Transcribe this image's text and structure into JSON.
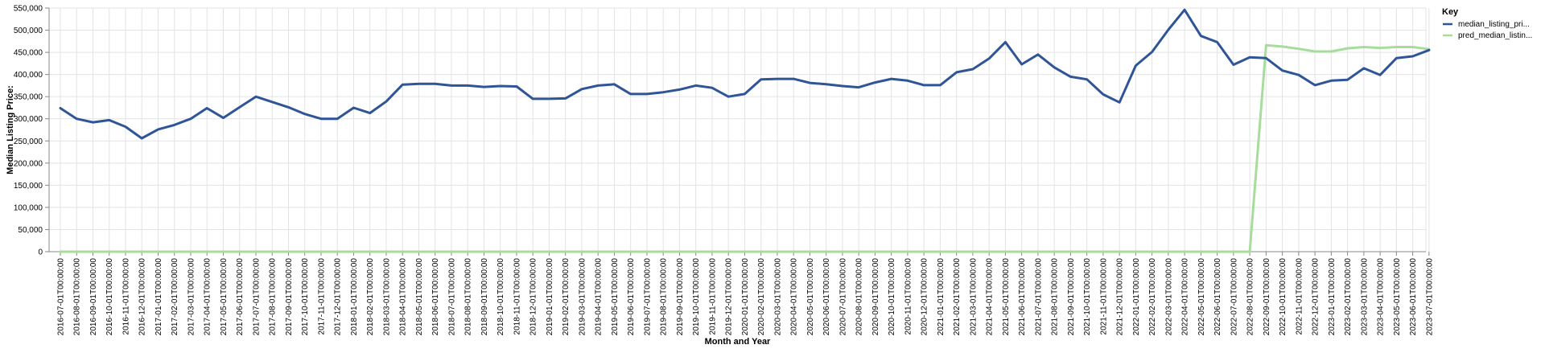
{
  "chart_data": {
    "type": "line",
    "xlabel": "Month and Year",
    "ylabel": "Median Listing Price:",
    "ylim": [
      0,
      550000
    ],
    "y_ticks": [
      "0",
      "50,000",
      "100,000",
      "150,000",
      "200,000",
      "250,000",
      "300,000",
      "350,000",
      "400,000",
      "450,000",
      "500,000",
      "550,000"
    ],
    "grid": true,
    "legend_position": "right",
    "legend_title": "Key",
    "x": [
      "2016-07-01T00:00:00",
      "2016-08-01T00:00:00",
      "2016-09-01T00:00:00",
      "2016-10-01T00:00:00",
      "2016-11-01T00:00:00",
      "2016-12-01T00:00:00",
      "2017-01-01T00:00:00",
      "2017-02-01T00:00:00",
      "2017-03-01T00:00:00",
      "2017-04-01T00:00:00",
      "2017-05-01T00:00:00",
      "2017-06-01T00:00:00",
      "2017-07-01T00:00:00",
      "2017-08-01T00:00:00",
      "2017-09-01T00:00:00",
      "2017-10-01T00:00:00",
      "2017-11-01T00:00:00",
      "2017-12-01T00:00:00",
      "2018-01-01T00:00:00",
      "2018-02-01T00:00:00",
      "2018-03-01T00:00:00",
      "2018-04-01T00:00:00",
      "2018-05-01T00:00:00",
      "2018-06-01T00:00:00",
      "2018-07-01T00:00:00",
      "2018-08-01T00:00:00",
      "2018-09-01T00:00:00",
      "2018-10-01T00:00:00",
      "2018-11-01T00:00:00",
      "2018-12-01T00:00:00",
      "2019-01-01T00:00:00",
      "2019-02-01T00:00:00",
      "2019-03-01T00:00:00",
      "2019-04-01T00:00:00",
      "2019-05-01T00:00:00",
      "2019-06-01T00:00:00",
      "2019-07-01T00:00:00",
      "2019-08-01T00:00:00",
      "2019-09-01T00:00:00",
      "2019-10-01T00:00:00",
      "2019-11-01T00:00:00",
      "2019-12-01T00:00:00",
      "2020-01-01T00:00:00",
      "2020-02-01T00:00:00",
      "2020-03-01T00:00:00",
      "2020-04-01T00:00:00",
      "2020-05-01T00:00:00",
      "2020-06-01T00:00:00",
      "2020-07-01T00:00:00",
      "2020-08-01T00:00:00",
      "2020-09-01T00:00:00",
      "2020-10-01T00:00:00",
      "2020-11-01T00:00:00",
      "2020-12-01T00:00:00",
      "2021-01-01T00:00:00",
      "2021-02-01T00:00:00",
      "2021-03-01T00:00:00",
      "2021-04-01T00:00:00",
      "2021-05-01T00:00:00",
      "2021-06-01T00:00:00",
      "2021-07-01T00:00:00",
      "2021-08-01T00:00:00",
      "2021-09-01T00:00:00",
      "2021-10-01T00:00:00",
      "2021-11-01T00:00:00",
      "2021-12-01T00:00:00",
      "2022-01-01T00:00:00",
      "2022-02-01T00:00:00",
      "2022-03-01T00:00:00",
      "2022-04-01T00:00:00",
      "2022-05-01T00:00:00",
      "2022-06-01T00:00:00",
      "2022-07-01T00:00:00",
      "2022-08-01T00:00:00",
      "2022-09-01T00:00:00",
      "2022-10-01T00:00:00",
      "2022-11-01T00:00:00",
      "2022-12-01T00:00:00",
      "2023-01-01T00:00:00",
      "2023-02-01T00:00:00",
      "2023-03-01T00:00:00",
      "2023-04-01T00:00:00",
      "2023-05-01T00:00:00",
      "2023-06-01T00:00:00",
      "2023-07-01T00:00:00"
    ],
    "series": [
      {
        "name": "median_listing_pri...",
        "color": "#2f5597",
        "values": [
          324000,
          300000,
          292000,
          297000,
          282000,
          256000,
          276000,
          286000,
          300000,
          324000,
          302000,
          326000,
          350000,
          338000,
          326000,
          311000,
          300000,
          300000,
          325000,
          313000,
          339000,
          377000,
          379000,
          379000,
          375000,
          375000,
          372000,
          374000,
          373000,
          345000,
          345000,
          346000,
          367000,
          375000,
          378000,
          356000,
          356000,
          360000,
          366000,
          375000,
          370000,
          350000,
          356000,
          389000,
          390000,
          390000,
          381000,
          378000,
          374000,
          371000,
          382000,
          390000,
          386000,
          376000,
          376000,
          405000,
          412000,
          436000,
          473000,
          423000,
          445000,
          416000,
          395000,
          389000,
          355000,
          337000,
          420000,
          451000,
          501000,
          546000,
          487000,
          473000,
          422000,
          439000,
          437000,
          409000,
          399000,
          376000,
          386000,
          388000,
          414000,
          399000,
          437000,
          441000,
          455000
        ]
      },
      {
        "name": "pred_median_listin...",
        "color": "#a8dc9c",
        "values": [
          0,
          0,
          0,
          0,
          0,
          0,
          0,
          0,
          0,
          0,
          0,
          0,
          0,
          0,
          0,
          0,
          0,
          0,
          0,
          0,
          0,
          0,
          0,
          0,
          0,
          0,
          0,
          0,
          0,
          0,
          0,
          0,
          0,
          0,
          0,
          0,
          0,
          0,
          0,
          0,
          0,
          0,
          0,
          0,
          0,
          0,
          0,
          0,
          0,
          0,
          0,
          0,
          0,
          0,
          0,
          0,
          0,
          0,
          0,
          0,
          0,
          0,
          0,
          0,
          0,
          0,
          0,
          0,
          0,
          0,
          0,
          0,
          0,
          0,
          466000,
          463000,
          458000,
          452000,
          452000,
          459000,
          462000,
          460000,
          462000,
          462000,
          457000
        ]
      }
    ]
  }
}
